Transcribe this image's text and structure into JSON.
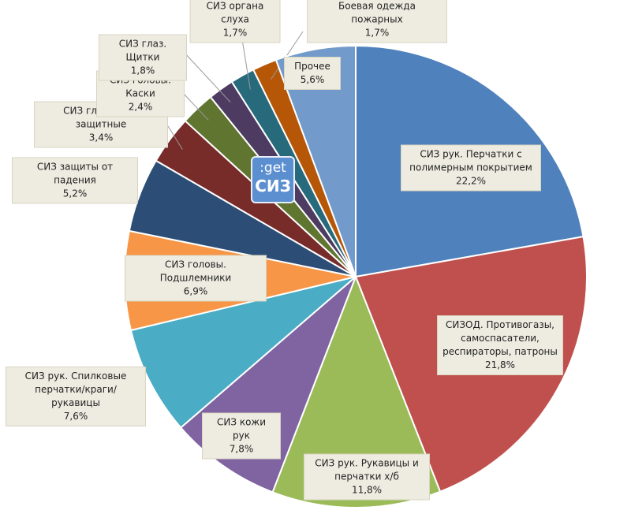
{
  "chart_data": {
    "type": "pie",
    "categories": [
      "СИЗ рук. Перчатки с полимерным покрытием",
      "СИЗОД. Противогазы, самоспасатели, респираторы, патроны",
      "СИЗ рук. Рукавицы и перчатки х/б",
      "СИЗ кожи рук",
      "СИЗ рук. Спилковые перчатки/краги/рукавицы",
      "СИЗ головы. Подшлемники",
      "СИЗ защиты от падения",
      "СИЗ глаз. Очки защитные",
      "СИЗ головы. Каски",
      "СИЗ глаз. Щитки",
      "СИЗ органа слуха",
      "Боевая одежда пожарных",
      "Прочее"
    ],
    "values": [
      22.2,
      21.8,
      11.8,
      7.8,
      7.6,
      6.9,
      5.2,
      3.4,
      2.4,
      1.8,
      1.7,
      1.7,
      5.6
    ],
    "value_labels": [
      "22,2%",
      "21,8%",
      "11,8%",
      "7,8%",
      "7,6%",
      "6,9%",
      "5,2%",
      "3,4%",
      "2,4%",
      "1,8%",
      "1,7%",
      "1,7%",
      "5,6%"
    ],
    "colors": [
      "#4f81bd",
      "#c0504d",
      "#9bbb59",
      "#8064a2",
      "#4bacc6",
      "#f79646",
      "#2c4d75",
      "#772c2a",
      "#5f7530",
      "#4d3b62",
      "#276a7c",
      "#b65708",
      "#729aca"
    ]
  },
  "logo": {
    "line1": ":get",
    "line2": "СИЗ"
  }
}
